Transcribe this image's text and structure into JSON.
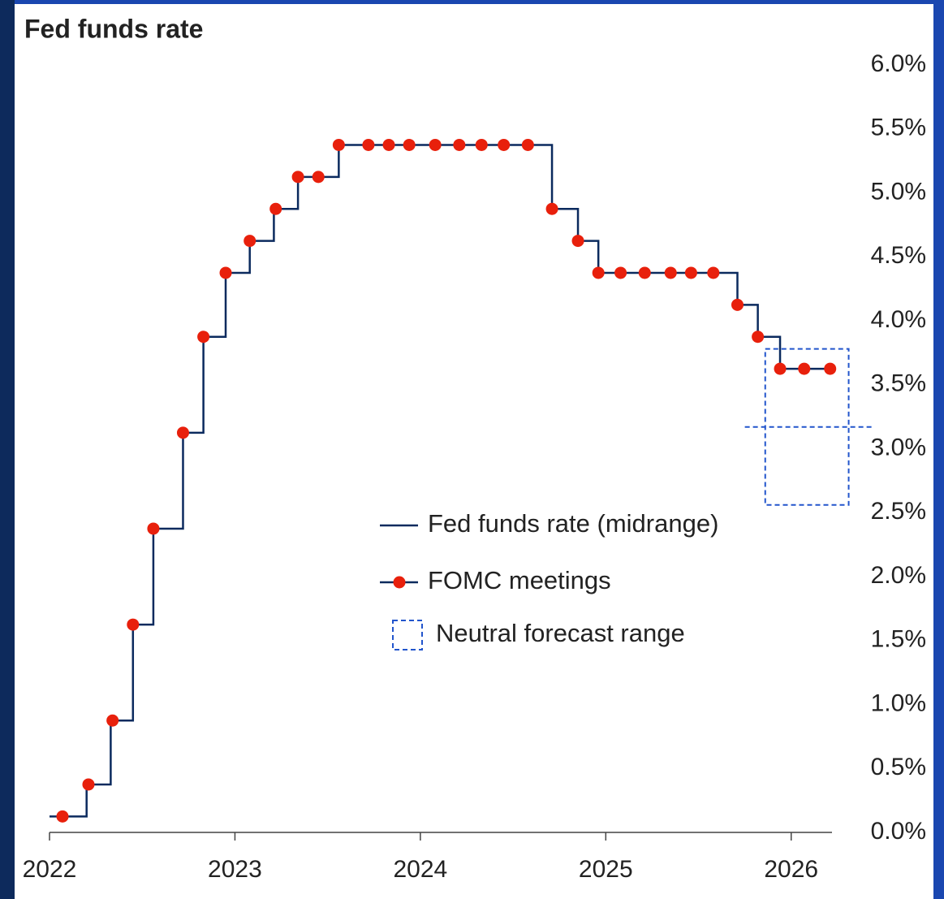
{
  "chart_data": {
    "type": "line",
    "title": "Fed funds rate",
    "xlim": [
      2022,
      2026.22
    ],
    "xticks": [
      2022,
      2023,
      2024,
      2025,
      2026
    ],
    "ylim": [
      0,
      6
    ],
    "yticks": [
      {
        "value": 0,
        "label": "0.0%"
      },
      {
        "value": 0.5,
        "label": "0.5%"
      },
      {
        "value": 1,
        "label": "1.0%"
      },
      {
        "value": 1.5,
        "label": "1.5%"
      },
      {
        "value": 2,
        "label": "2.0%"
      },
      {
        "value": 2.5,
        "label": "2.5%"
      },
      {
        "value": 3,
        "label": "3.0%"
      },
      {
        "value": 3.5,
        "label": "3.5%"
      },
      {
        "value": 4,
        "label": "4.0%"
      },
      {
        "value": 4.5,
        "label": "4.5%"
      },
      {
        "value": 5,
        "label": "5.0%"
      },
      {
        "value": 5.5,
        "label": "5.5%"
      },
      {
        "value": 6,
        "label": "6.0%"
      }
    ],
    "series": [
      {
        "name": "Fed funds rate (midrange)",
        "color": "#0b2a5e",
        "step": "post",
        "x": [
          2022,
          2022.2,
          2022.33,
          2022.45,
          2022.56,
          2022.72,
          2022.83,
          2022.95,
          2023.08,
          2023.21,
          2023.34,
          2023.56,
          2024.71,
          2024.85,
          2024.96,
          2025.71,
          2025.82,
          2025.94,
          2026.22
        ],
        "values": [
          0.125,
          0.375,
          0.875,
          1.625,
          2.375,
          3.125,
          3.875,
          4.375,
          4.625,
          4.875,
          5.125,
          5.375,
          4.875,
          4.625,
          4.375,
          4.125,
          3.875,
          3.625,
          3.625
        ]
      },
      {
        "name": "FOMC meetings",
        "color": "#e8200c",
        "marker": true,
        "x": [
          2022.07,
          2022.21,
          2022.34,
          2022.45,
          2022.56,
          2022.72,
          2022.83,
          2022.95,
          2023.08,
          2023.22,
          2023.34,
          2023.45,
          2023.56,
          2023.72,
          2023.83,
          2023.94,
          2024.08,
          2024.21,
          2024.33,
          2024.45,
          2024.58,
          2024.71,
          2024.85,
          2024.96,
          2025.08,
          2025.21,
          2025.35,
          2025.46,
          2025.58,
          2025.71,
          2025.82,
          2025.94,
          2026.07,
          2026.21
        ],
        "values": [
          0.125,
          0.375,
          0.875,
          1.625,
          2.375,
          3.125,
          3.875,
          4.375,
          4.625,
          4.875,
          5.125,
          5.125,
          5.375,
          5.375,
          5.375,
          5.375,
          5.375,
          5.375,
          5.375,
          5.375,
          5.375,
          4.875,
          4.625,
          4.375,
          4.375,
          4.375,
          4.375,
          4.375,
          4.375,
          4.125,
          3.875,
          3.625,
          3.625,
          3.625
        ]
      }
    ],
    "neutral_range": {
      "name": "Neutral forecast range",
      "color": "#2255cc",
      "x": [
        2025.86,
        2026.31
      ],
      "range": [
        2.56,
        3.78
      ],
      "median": 3.17,
      "median_x": [
        2025.75,
        2026.45
      ]
    }
  }
}
